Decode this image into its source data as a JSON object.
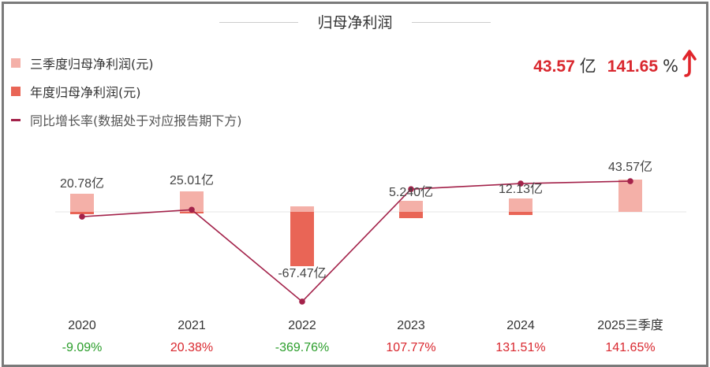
{
  "title": "归母净利润",
  "legend": [
    {
      "label": "三季度归母净利润(元)",
      "color": "#f4b0a8"
    },
    {
      "label": "年度归母净利润(元)",
      "color": "#e96556"
    },
    {
      "label": "同比增长率(数据处于对应报告期下方)",
      "color": "#a3224a"
    }
  ],
  "kpi": {
    "value": "43.57",
    "value_unit": "亿",
    "growth": "141.65",
    "growth_unit": "%",
    "trend_icon": "arrow-up-icon",
    "color": "#d9272e"
  },
  "chart_data": {
    "type": "bar",
    "categories": [
      "2020",
      "2021",
      "2022",
      "2023",
      "2024",
      "2025三季度"
    ],
    "series": [
      {
        "name": "三季度归母净利润(元)",
        "type": "bar",
        "value_labels": [
          "20.78亿",
          "25.01亿",
          "-67.47亿",
          "5.240亿",
          "12.13亿",
          "43.57亿"
        ]
      },
      {
        "name": "年度归母净利润(元)",
        "type": "bar"
      },
      {
        "name": "同比增长率(数据处于对应报告期下方)",
        "type": "line",
        "values": [
          -9.09,
          20.38,
          -369.76,
          107.77,
          131.51,
          141.65
        ],
        "labels": [
          "-9.09%",
          "20.38%",
          "-369.76%",
          "107.77%",
          "131.51%",
          "141.65%"
        ]
      }
    ],
    "colors": {
      "positive": "#d9272e",
      "negative": "#2a9d2a"
    },
    "grid": false
  }
}
